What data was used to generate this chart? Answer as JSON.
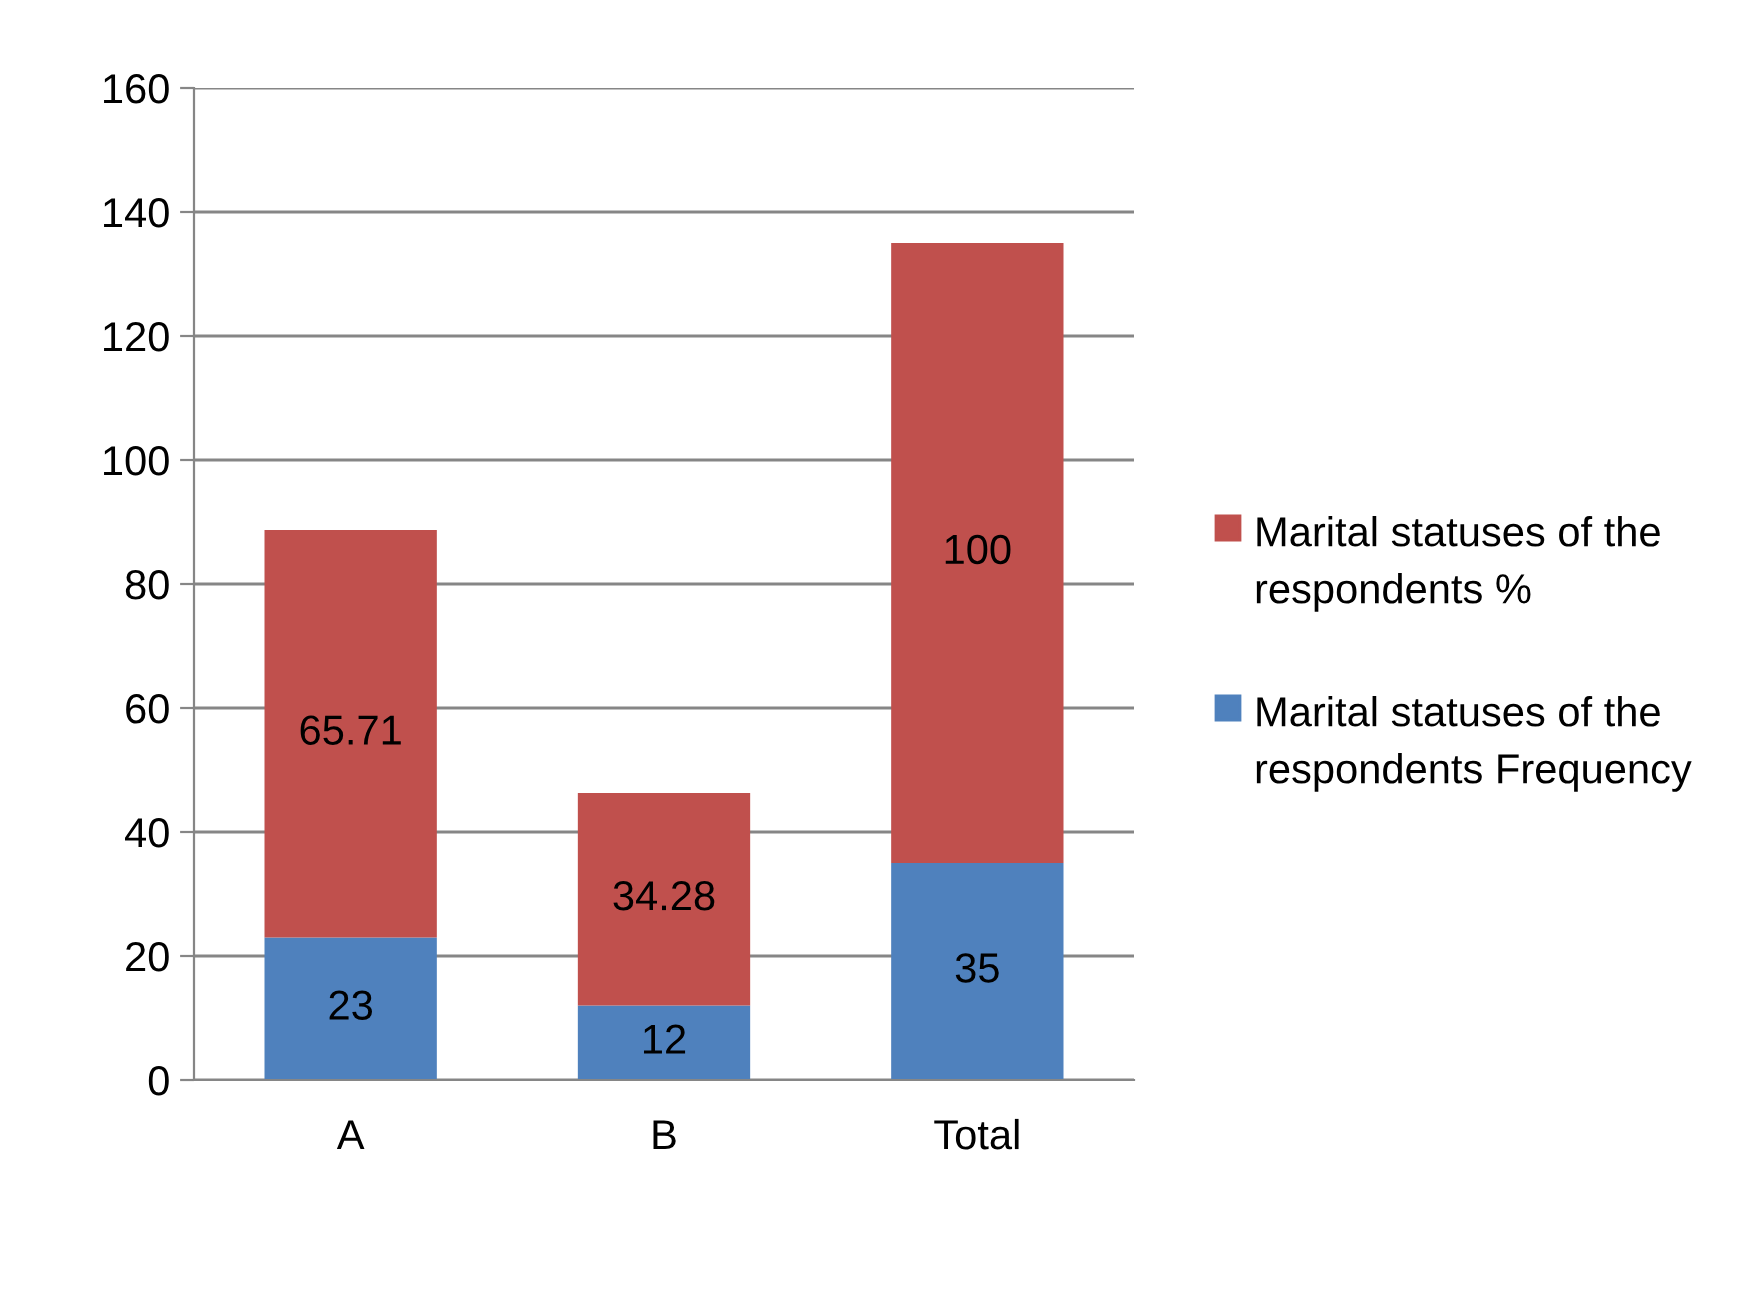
{
  "chart_data": {
    "type": "bar",
    "stacked": true,
    "categories": [
      "A",
      "B",
      "Total"
    ],
    "series": [
      {
        "name": "Marital statuses of the respondents Frequency",
        "color": "#4f81bd",
        "values": [
          23,
          12,
          35
        ]
      },
      {
        "name": "Marital statuses of the respondents %",
        "color": "#c0504d",
        "values": [
          65.71,
          34.28,
          100
        ]
      }
    ],
    "ylim": [
      0,
      160
    ],
    "yticks": [
      0,
      20,
      40,
      60,
      80,
      100,
      120,
      140,
      160
    ],
    "grid": "y",
    "legend": "right",
    "data_labels": true
  }
}
